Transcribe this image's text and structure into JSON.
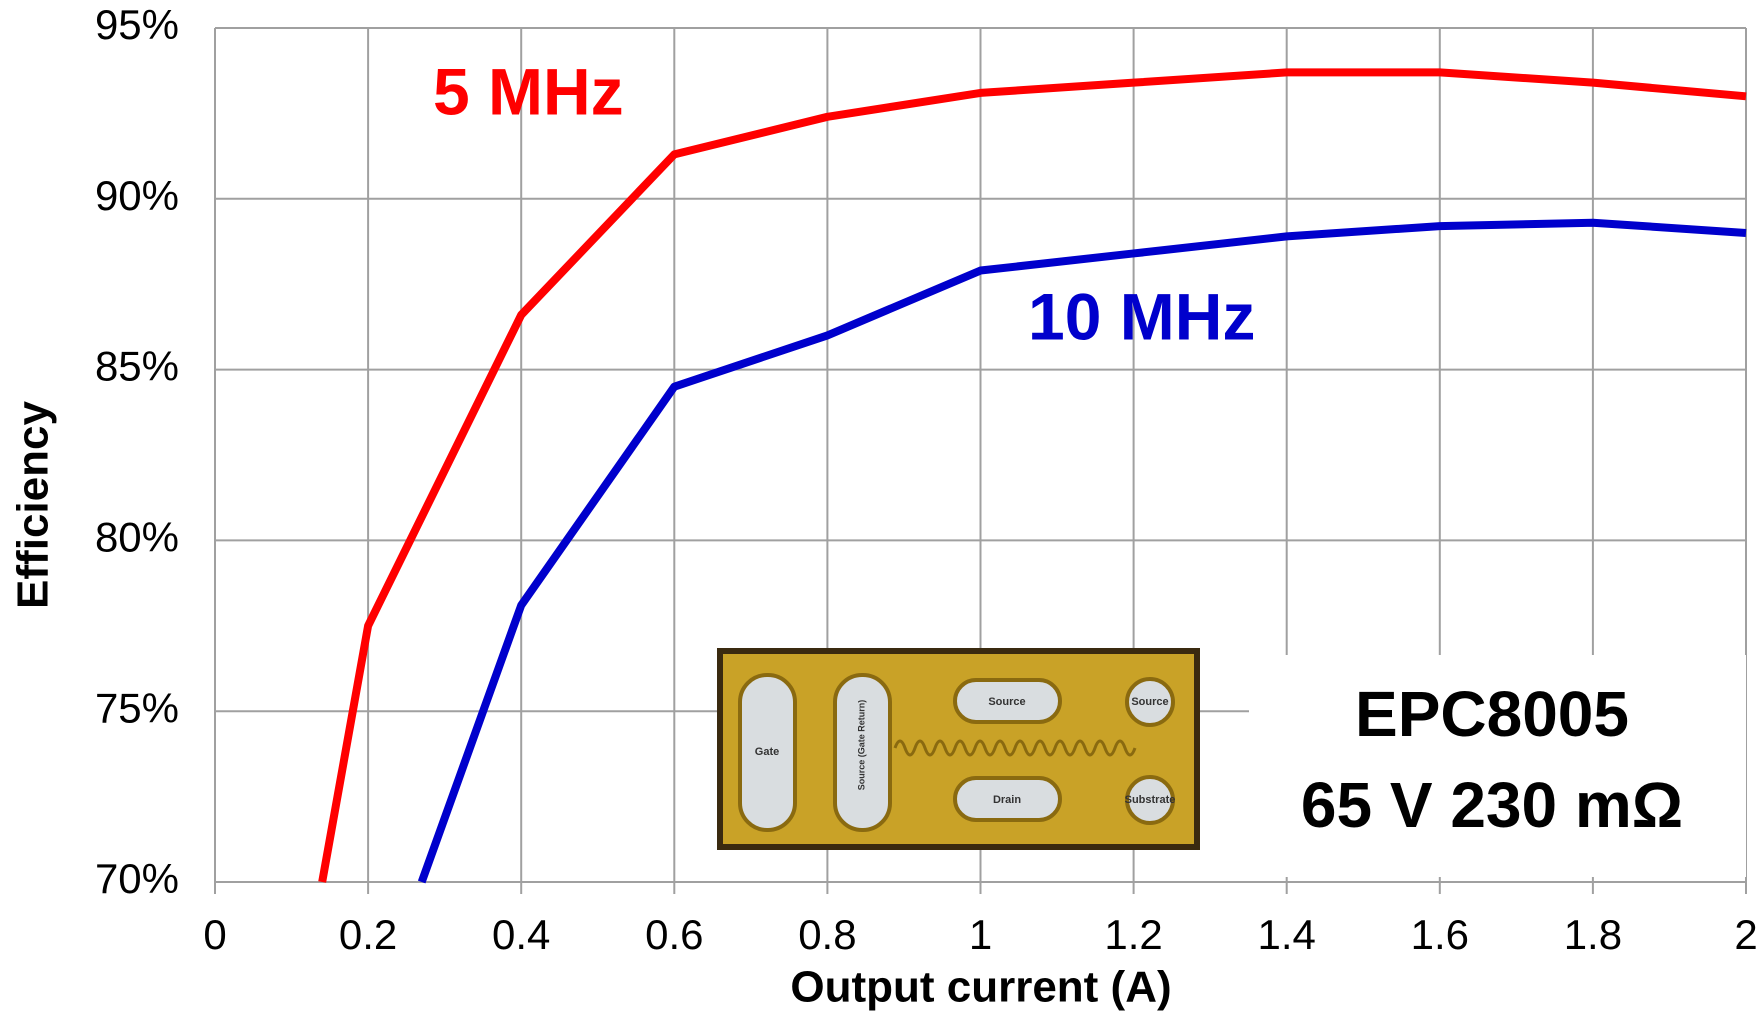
{
  "chart_data": {
    "type": "line",
    "xlabel": "Output current (A)",
    "ylabel": "Efficiency",
    "series": [
      {
        "name": "5 MHz",
        "color": "#ff0000",
        "x": [
          0.14,
          0.2,
          0.4,
          0.6,
          0.8,
          1.0,
          1.2,
          1.4,
          1.6,
          1.8,
          2.0
        ],
        "values": [
          70,
          77.5,
          86.6,
          91.3,
          92.4,
          93.1,
          93.4,
          93.7,
          93.7,
          93.4,
          93.0
        ]
      },
      {
        "name": "10 MHz",
        "color": "#0000cc",
        "x": [
          0.27,
          0.4,
          0.6,
          0.8,
          1.0,
          1.2,
          1.4,
          1.6,
          1.8,
          2.0
        ],
        "values": [
          70,
          78.1,
          84.5,
          86.0,
          87.9,
          88.4,
          88.9,
          89.2,
          89.3,
          89.0
        ]
      }
    ],
    "xlim": [
      0,
      2
    ],
    "xticks": [
      0,
      0.2,
      0.4,
      0.6,
      0.8,
      1,
      1.2,
      1.4,
      1.6,
      1.8,
      2
    ],
    "ylim": [
      70,
      95
    ],
    "yticks": [
      {
        "value": 70,
        "label": "70%"
      },
      {
        "value": 75,
        "label": "75%"
      },
      {
        "value": 80,
        "label": "80%"
      },
      {
        "value": 85,
        "label": "85%"
      },
      {
        "value": 90,
        "label": "90%"
      },
      {
        "value": 95,
        "label": "95%"
      }
    ],
    "grid": true,
    "annotations": [
      "EPC8005",
      "65 V 230 mΩ"
    ],
    "inset_labels": [
      "Gate",
      "Source (Gate Return)",
      "Source",
      "Source",
      "Drain",
      "Substrate"
    ]
  }
}
